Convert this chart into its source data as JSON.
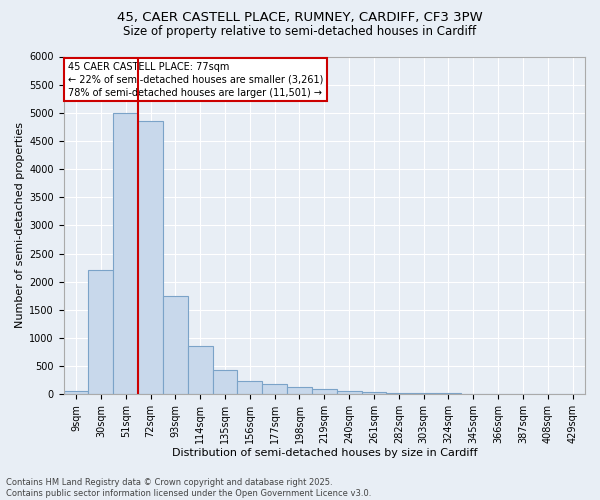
{
  "title_line1": "45, CAER CASTELL PLACE, RUMNEY, CARDIFF, CF3 3PW",
  "title_line2": "Size of property relative to semi-detached houses in Cardiff",
  "xlabel": "Distribution of semi-detached houses by size in Cardiff",
  "ylabel": "Number of semi-detached properties",
  "bar_color": "#c8d8eb",
  "bar_edge_color": "#7ba3c8",
  "background_color": "#e8eef5",
  "grid_color": "#ffffff",
  "categories": [
    "9sqm",
    "30sqm",
    "51sqm",
    "72sqm",
    "93sqm",
    "114sqm",
    "135sqm",
    "156sqm",
    "177sqm",
    "198sqm",
    "219sqm",
    "240sqm",
    "261sqm",
    "282sqm",
    "303sqm",
    "324sqm",
    "345sqm",
    "366sqm",
    "387sqm",
    "408sqm",
    "429sqm"
  ],
  "values": [
    50,
    2200,
    5000,
    4850,
    1750,
    850,
    430,
    230,
    175,
    130,
    90,
    60,
    40,
    25,
    20,
    15,
    10,
    8,
    5,
    3,
    2
  ],
  "ylim": [
    0,
    6000
  ],
  "yticks": [
    0,
    500,
    1000,
    1500,
    2000,
    2500,
    3000,
    3500,
    4000,
    4500,
    5000,
    5500,
    6000
  ],
  "red_line_bin": 3,
  "annotation_line1": "45 CAER CASTELL PLACE: 77sqm",
  "annotation_line2": "← 22% of semi-detached houses are smaller (3,261)",
  "annotation_line3": "78% of semi-detached houses are larger (11,501) →",
  "red_line_color": "#cc0000",
  "annotation_facecolor": "#ffffff",
  "annotation_edgecolor": "#cc0000",
  "footer_line1": "Contains HM Land Registry data © Crown copyright and database right 2025.",
  "footer_line2": "Contains public sector information licensed under the Open Government Licence v3.0.",
  "title_fontsize": 9.5,
  "subtitle_fontsize": 8.5,
  "tick_fontsize": 7,
  "axis_label_fontsize": 8,
  "annotation_fontsize": 7,
  "footer_fontsize": 6
}
